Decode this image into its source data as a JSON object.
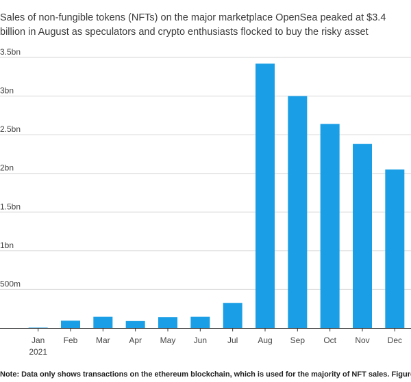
{
  "header": {
    "title_fragment": "",
    "subtitle": "Sales of non-fungible tokens (NFTs) on the major marketplace OpenSea peaked at $3.4 billion in August as speculators and crypto enthusiasts flocked to buy the risky asset"
  },
  "footnote": "Note: Data only shows transactions on the ethereum blockchain, which is used for the majority of NFT sales. Figure for December is",
  "colors": {
    "bar": "#1a9fe6",
    "grid": "#d6d6d6",
    "axis": "#333333",
    "text": "#444444"
  },
  "chart_data": {
    "type": "bar",
    "categories": [
      "Jan",
      "Feb",
      "Mar",
      "Apr",
      "May",
      "Jun",
      "Jul",
      "Aug",
      "Sep",
      "Oct",
      "Nov",
      "Dec"
    ],
    "category_sublabels": {
      "Jan": "2021"
    },
    "values": [
      0.005,
      0.095,
      0.145,
      0.09,
      0.14,
      0.145,
      0.325,
      3.42,
      3.0,
      2.64,
      2.38,
      2.05
    ],
    "unit": "billion USD",
    "ylim": [
      0,
      3.5
    ],
    "yticks": [
      {
        "value": 0.5,
        "label": "500m"
      },
      {
        "value": 1.0,
        "label": "1bn"
      },
      {
        "value": 1.5,
        "label": "1.5bn"
      },
      {
        "value": 2.0,
        "label": "2bn"
      },
      {
        "value": 2.5,
        "label": "2.5bn"
      },
      {
        "value": 3.0,
        "label": "3bn"
      },
      {
        "value": 3.5,
        "label": "3.5bn"
      }
    ],
    "grid": true,
    "title": "",
    "xlabel": "",
    "ylabel": ""
  }
}
